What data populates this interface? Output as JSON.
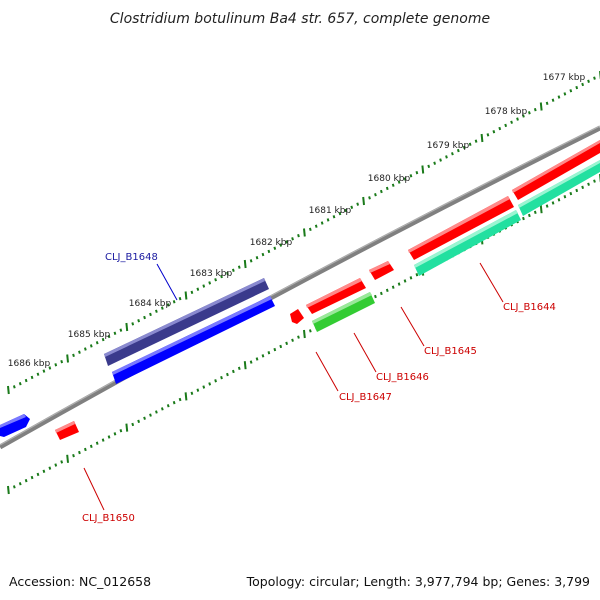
{
  "title": "Clostridium botulinum Ba4 str. 657, complete genome",
  "footer": {
    "accession": "Accession: NC_012658",
    "summary": "Topology: circular; Length: 3,977,794 bp; Genes: 3,799"
  },
  "colors": {
    "backbone": "#808080",
    "ruler_ticks": "#1a7a1a",
    "label_blue": "#1a1aa0",
    "label_red": "#cc0000",
    "gene_blue": "#0000ff",
    "gene_red": "#ff0000",
    "gene_darkblue": "#3a3a8c",
    "gene_green": "#33cc33",
    "gene_teal": "#22e0a0"
  },
  "ruler": {
    "labels": [
      "1677 kbp",
      "1678 kbp",
      "1679 kbp",
      "1680 kbp",
      "1681 kbp",
      "1682 kbp",
      "1683 kbp",
      "1684 kbp",
      "1685 kbp",
      "1686 kbp"
    ]
  },
  "genes": [
    {
      "label": "CLJ_B1644",
      "color": "#ff0000"
    },
    {
      "label": "CLJ_B1645",
      "color": "#ff0000"
    },
    {
      "label": "CLJ_B1646",
      "color": "#ff0000"
    },
    {
      "label": "CLJ_B1647",
      "color": "#ff0000"
    },
    {
      "label": "CLJ_B1648",
      "color": "#0000cc"
    },
    {
      "label": "CLJ_B1650",
      "color": "#ff0000"
    }
  ]
}
